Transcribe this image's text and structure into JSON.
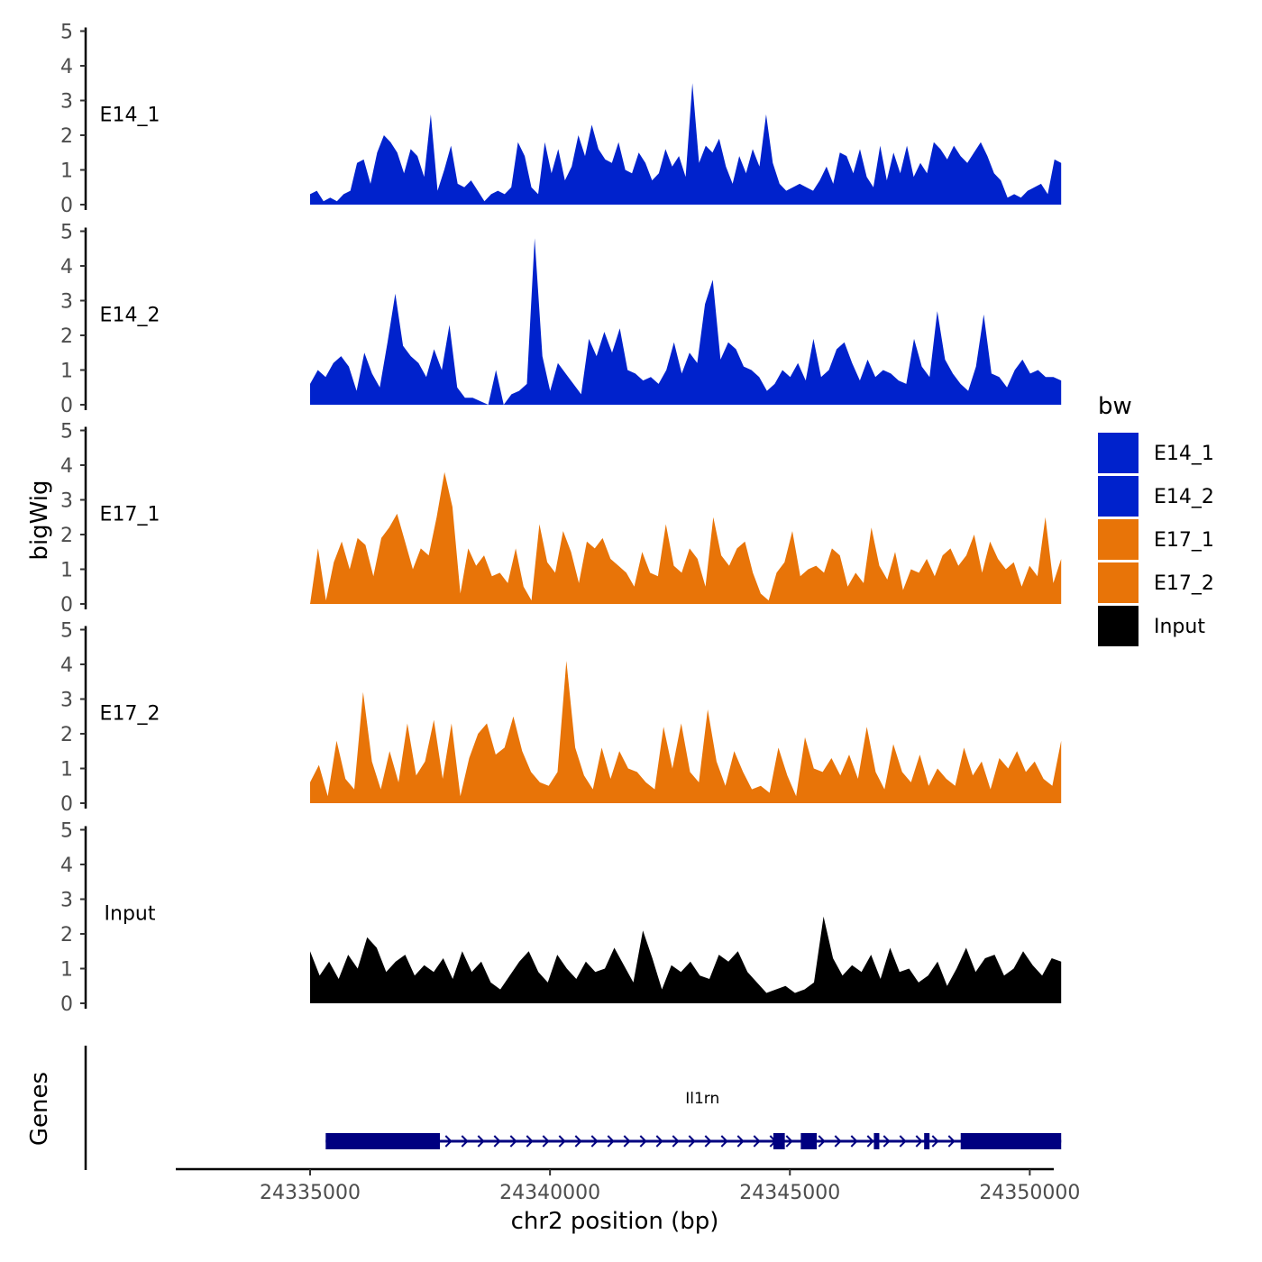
{
  "chart_data": {
    "type": "area",
    "xlabel": "chr2 position (bp)",
    "ylabel": "bigWig",
    "genes_label": "Genes",
    "legend_title": "bw",
    "legend_position": "right",
    "grid": false,
    "xlim": [
      24332200,
      24350500
    ],
    "ylim": [
      0,
      5
    ],
    "x_ticks": [
      24335000,
      24340000,
      24345000,
      24350000
    ],
    "x_tick_labels": [
      "24335000",
      "24340000",
      "24345000",
      "24350000"
    ],
    "y_ticks": [
      0,
      1,
      2,
      3,
      4,
      5
    ],
    "y_tick_labels": [
      "0",
      "1",
      "2",
      "3",
      "4",
      "5"
    ],
    "x_start": 24335000,
    "x_end": 24351500,
    "legend": [
      {
        "name": "E14_1",
        "color": "#0022cc"
      },
      {
        "name": "E14_2",
        "color": "#0022cc"
      },
      {
        "name": "E17_1",
        "color": "#e87408"
      },
      {
        "name": "E17_2",
        "color": "#e87408"
      },
      {
        "name": "Input",
        "color": "#000000"
      }
    ],
    "series": [
      {
        "name": "E14_1",
        "color": "#0022cc",
        "values": [
          0.3,
          0.4,
          0.1,
          0.2,
          0.1,
          0.3,
          0.4,
          1.2,
          1.3,
          0.6,
          1.5,
          2.0,
          1.8,
          1.5,
          0.9,
          1.6,
          1.4,
          0.8,
          2.6,
          0.4,
          1.0,
          1.7,
          0.6,
          0.5,
          0.7,
          0.4,
          0.1,
          0.3,
          0.4,
          0.3,
          0.5,
          1.8,
          1.4,
          0.5,
          0.3,
          1.8,
          0.9,
          1.6,
          0.7,
          1.1,
          2.0,
          1.4,
          2.3,
          1.6,
          1.3,
          1.2,
          1.8,
          1.0,
          0.9,
          1.5,
          1.2,
          0.7,
          0.9,
          1.6,
          1.1,
          1.4,
          0.8,
          3.5,
          1.2,
          1.7,
          1.5,
          1.9,
          1.1,
          0.6,
          1.4,
          0.9,
          1.6,
          1.1,
          2.6,
          1.2,
          0.6,
          0.4,
          0.5,
          0.6,
          0.5,
          0.4,
          0.7,
          1.1,
          0.6,
          1.5,
          1.4,
          0.9,
          1.6,
          0.8,
          0.5,
          1.7,
          0.7,
          1.5,
          0.9,
          1.7,
          0.8,
          1.2,
          0.9,
          1.8,
          1.6,
          1.3,
          1.7,
          1.4,
          1.2,
          1.5,
          1.8,
          1.4,
          0.9,
          0.7,
          0.2,
          0.3,
          0.2,
          0.4,
          0.5,
          0.6,
          0.3,
          1.3,
          1.2
        ]
      },
      {
        "name": "E14_2",
        "color": "#0022cc",
        "values": [
          0.6,
          1.0,
          0.8,
          1.2,
          1.4,
          1.1,
          0.4,
          1.5,
          0.9,
          0.5,
          1.8,
          3.2,
          1.7,
          1.4,
          1.2,
          0.8,
          1.6,
          1.0,
          2.3,
          0.5,
          0.2,
          0.2,
          0.1,
          0.0,
          1.0,
          0.0,
          0.3,
          0.4,
          0.6,
          4.8,
          1.4,
          0.4,
          1.2,
          0.9,
          0.6,
          0.3,
          1.9,
          1.4,
          2.1,
          1.5,
          2.2,
          1.0,
          0.9,
          0.7,
          0.8,
          0.6,
          1.0,
          1.8,
          0.9,
          1.5,
          1.2,
          2.9,
          3.6,
          1.3,
          1.8,
          1.6,
          1.1,
          1.0,
          0.8,
          0.4,
          0.6,
          1.0,
          0.8,
          1.2,
          0.7,
          1.9,
          0.8,
          1.0,
          1.6,
          1.8,
          1.2,
          0.7,
          1.3,
          0.8,
          1.0,
          0.9,
          0.7,
          0.6,
          1.9,
          1.1,
          0.8,
          2.7,
          1.3,
          0.9,
          0.6,
          0.4,
          1.1,
          2.6,
          0.9,
          0.8,
          0.5,
          1.0,
          1.3,
          0.9,
          1.0,
          0.8,
          0.8,
          0.7
        ]
      },
      {
        "name": "E17_1",
        "color": "#e87408",
        "values": [
          0.0,
          1.6,
          0.1,
          1.2,
          1.8,
          1.0,
          1.9,
          1.7,
          0.8,
          1.9,
          2.2,
          2.6,
          1.8,
          1.0,
          1.6,
          1.4,
          2.5,
          3.8,
          2.8,
          0.3,
          1.6,
          1.1,
          1.4,
          0.8,
          0.9,
          0.6,
          1.6,
          0.5,
          0.1,
          2.3,
          1.2,
          0.9,
          2.1,
          1.5,
          0.6,
          1.8,
          1.6,
          1.9,
          1.3,
          1.1,
          0.9,
          0.5,
          1.5,
          0.9,
          0.8,
          2.3,
          1.1,
          0.9,
          1.6,
          1.3,
          0.5,
          2.5,
          1.4,
          1.1,
          1.6,
          1.8,
          0.9,
          0.3,
          0.1,
          0.9,
          1.2,
          2.1,
          0.8,
          1.0,
          1.1,
          0.9,
          1.6,
          1.4,
          0.5,
          0.9,
          0.6,
          2.2,
          1.1,
          0.7,
          1.5,
          0.4,
          1.0,
          0.9,
          1.3,
          0.8,
          1.4,
          1.6,
          1.1,
          1.4,
          2.0,
          0.9,
          1.8,
          1.3,
          1.0,
          1.2,
          0.5,
          1.1,
          0.8,
          2.5,
          0.6,
          1.3
        ]
      },
      {
        "name": "E17_2",
        "color": "#e87408",
        "values": [
          0.6,
          1.1,
          0.2,
          1.8,
          0.7,
          0.4,
          3.2,
          1.2,
          0.4,
          1.5,
          0.6,
          2.3,
          0.8,
          1.2,
          2.4,
          0.7,
          2.3,
          0.2,
          1.3,
          2.0,
          2.3,
          1.4,
          1.6,
          2.5,
          1.5,
          0.9,
          0.6,
          0.5,
          0.9,
          4.1,
          1.6,
          0.8,
          0.4,
          1.6,
          0.7,
          1.5,
          1.0,
          0.9,
          0.6,
          0.4,
          2.2,
          1.0,
          2.3,
          0.9,
          0.6,
          2.7,
          1.2,
          0.5,
          1.5,
          0.9,
          0.4,
          0.5,
          0.3,
          1.6,
          0.8,
          0.2,
          1.9,
          1.0,
          0.9,
          1.3,
          0.8,
          1.4,
          0.7,
          2.2,
          0.9,
          0.4,
          1.7,
          0.9,
          0.6,
          1.4,
          0.5,
          1.0,
          0.7,
          0.5,
          1.6,
          0.8,
          1.2,
          0.4,
          1.3,
          1.0,
          1.5,
          0.9,
          1.2,
          0.7,
          0.5,
          1.8
        ]
      },
      {
        "name": "Input",
        "color": "#000000",
        "values": [
          1.5,
          0.8,
          1.2,
          0.7,
          1.4,
          1.0,
          1.9,
          1.6,
          0.9,
          1.2,
          1.4,
          0.8,
          1.1,
          0.9,
          1.3,
          0.7,
          1.5,
          0.9,
          1.2,
          0.6,
          0.4,
          0.8,
          1.2,
          1.5,
          0.9,
          0.6,
          1.4,
          1.0,
          0.7,
          1.2,
          0.9,
          1.0,
          1.6,
          1.1,
          0.6,
          2.1,
          1.3,
          0.4,
          1.1,
          0.9,
          1.2,
          0.8,
          0.7,
          1.4,
          1.2,
          1.5,
          0.9,
          0.6,
          0.3,
          0.4,
          0.5,
          0.3,
          0.4,
          0.6,
          2.5,
          1.3,
          0.8,
          1.1,
          0.9,
          1.4,
          0.7,
          1.6,
          0.9,
          1.0,
          0.6,
          0.8,
          1.2,
          0.5,
          1.0,
          1.6,
          0.9,
          1.3,
          1.4,
          0.8,
          1.0,
          1.5,
          1.1,
          0.8,
          1.3,
          1.2
        ]
      }
    ],
    "gene": {
      "name": "Il1rn",
      "strand": "+",
      "start": 24335400,
      "end": 24351500,
      "exons": [
        [
          24335400,
          24337900
        ],
        [
          24345200,
          24345450
        ],
        [
          24345800,
          24346150
        ],
        [
          24347400,
          24347500
        ],
        [
          24348500,
          24348600
        ],
        [
          24349300,
          24351500
        ]
      ]
    }
  }
}
